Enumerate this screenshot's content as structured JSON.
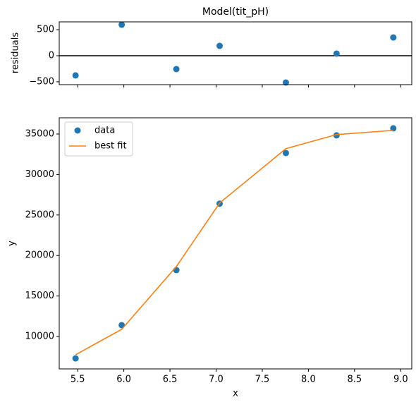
{
  "chart_data": [
    {
      "type": "scatter",
      "title": "Model(tit_pH)",
      "y_label": "residuals",
      "x": [
        5.477,
        5.977,
        6.569,
        7.038,
        7.756,
        8.305,
        8.92
      ],
      "series": [
        {
          "name": "residuals",
          "color": "#1f77b4",
          "style": "marker",
          "values": [
            -378,
            595,
            -257,
            189,
            -514,
            41,
            351
          ]
        }
      ],
      "hline": 0,
      "xlim": [
        5.3,
        9.12
      ],
      "xticks": [
        5.5,
        6,
        6.5,
        7,
        7.5,
        8,
        8.5,
        9
      ],
      "ylim": [
        -555,
        650
      ],
      "yticks": [
        {
          "value": -500,
          "label": "−500"
        },
        0,
        500
      ]
    },
    {
      "type": "line",
      "x_label": "x",
      "y_label": "y",
      "x": [
        5.477,
        5.977,
        6.569,
        7.038,
        7.756,
        8.305,
        8.92
      ],
      "series": [
        {
          "name": "data",
          "color": "#1f77b4",
          "style": "marker",
          "values": [
            7300,
            11400,
            18200,
            26400,
            32650,
            34830,
            35700
          ]
        },
        {
          "name": "best fit",
          "color": "#ff7f0e",
          "style": "line",
          "values": [
            7750,
            10890,
            18640,
            26480,
            33190,
            34930,
            35450
          ]
        }
      ],
      "legend": "upper left",
      "xlim": [
        5.3,
        9.12
      ],
      "xticks": [
        5.5,
        {
          "value": 6,
          "label": "6.0"
        },
        6.5,
        {
          "value": 7,
          "label": "7.0"
        },
        7.5,
        {
          "value": 8,
          "label": "8.0"
        },
        8.5,
        {
          "value": 9,
          "label": "9.0"
        }
      ],
      "ylim": [
        6000,
        37000
      ],
      "yticks": [
        10000,
        15000,
        20000,
        25000,
        30000,
        35000
      ]
    }
  ]
}
